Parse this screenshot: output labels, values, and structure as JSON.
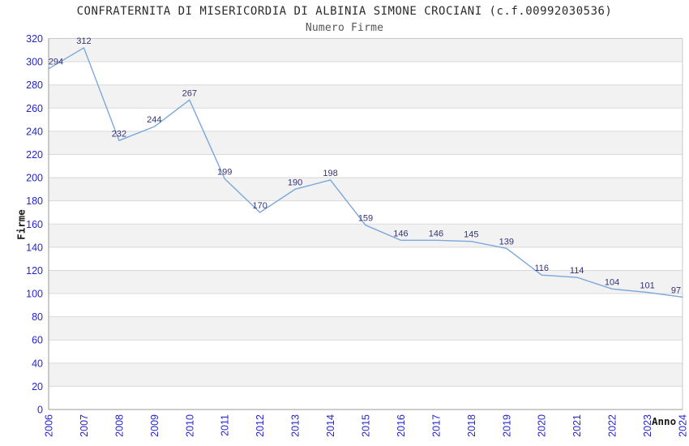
{
  "header": {
    "title": "CONFRATERNITA DI MISERICORDIA DI ALBINIA SIMONE CROCIANI (c.f.00992030536)",
    "subtitle": "Numero Firme"
  },
  "chart_data": {
    "type": "line",
    "title": "CONFRATERNITA DI MISERICORDIA DI ALBINIA SIMONE CROCIANI (c.f.00992030536)",
    "subtitle": "Numero Firme",
    "xlabel": "Anno",
    "ylabel": "Firme",
    "x": [
      2006,
      2007,
      2008,
      2009,
      2010,
      2011,
      2012,
      2013,
      2014,
      2015,
      2016,
      2017,
      2018,
      2019,
      2020,
      2021,
      2022,
      2023,
      2024
    ],
    "values": [
      294,
      312,
      232,
      244,
      267,
      199,
      170,
      190,
      198,
      159,
      146,
      146,
      145,
      139,
      116,
      114,
      104,
      101,
      97
    ],
    "ylim": [
      0,
      320
    ],
    "ytick_step": 20,
    "grid": true,
    "legend_position": "none",
    "colors": {
      "line": "#7ba7db",
      "data_label": "#333377",
      "tick_label": "#2424cd",
      "gridline": "#d9d9d9",
      "band_even": "#ffffff",
      "band_odd": "#f2f2f2",
      "plot_border": "#c9c9c9",
      "axis_line": "#999999"
    }
  }
}
